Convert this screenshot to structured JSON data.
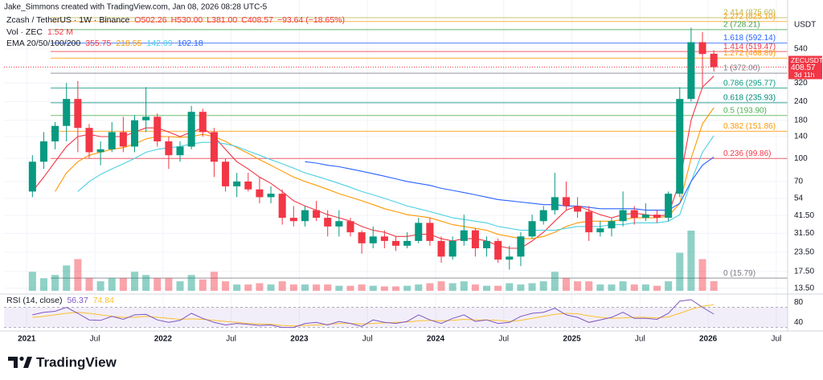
{
  "chart_data": {
    "type": "candlestick",
    "header": "Jake_Simmons created with TradingView.com, Jan 08, 2026 08:28 UTC-5",
    "legend": {
      "symbol": "Zcash / TetherUS · 1W · Binance",
      "quote": [
        "O502.26",
        "H530.00",
        "L381.00",
        "C408.57",
        "−93.64 (−18.65%)"
      ],
      "volume_label": "Vol · ZEC",
      "volume_value": "1.52 M",
      "ema_label": "EMA 20/50/100/200"
    },
    "axis_unit": "USDT",
    "ticker": "ZECUSDT",
    "countdown": "3d 11h",
    "brand": "TradingView",
    "up_color": "#089981",
    "down_color": "#f23645",
    "log_scale": true,
    "grid": true,
    "x": [
      "2021-01",
      "2021-02",
      "2021-03",
      "2021-04",
      "2021-05",
      "2021-06",
      "2021-07",
      "2021-08",
      "2021-09",
      "2021-10",
      "2021-11",
      "2021-12",
      "2022-01",
      "2022-02",
      "2022-03",
      "2022-04",
      "2022-05",
      "2022-06",
      "2022-07",
      "2022-08",
      "2022-09",
      "2022-10",
      "2022-11",
      "2022-12",
      "2023-01",
      "2023-02",
      "2023-03",
      "2023-04",
      "2023-05",
      "2023-06",
      "2023-07",
      "2023-08",
      "2023-09",
      "2023-10",
      "2023-11",
      "2023-12",
      "2024-01",
      "2024-02",
      "2024-03",
      "2024-04",
      "2024-05",
      "2024-06",
      "2024-07",
      "2024-08",
      "2024-09",
      "2024-10",
      "2024-11",
      "2024-12",
      "2025-01",
      "2025-02",
      "2025-03",
      "2025-04",
      "2025-05",
      "2025-06",
      "2025-07",
      "2025-08",
      "2025-09",
      "2025-10",
      "2025-11",
      "2025-12",
      "2026-01"
    ],
    "open": [
      60,
      95,
      130,
      165,
      250,
      160,
      110,
      115,
      150,
      120,
      180,
      190,
      130,
      105,
      120,
      205,
      150,
      95,
      65,
      70,
      62,
      55,
      58,
      40,
      38,
      45,
      40,
      35,
      38,
      32,
      27,
      30,
      28,
      26,
      28,
      37,
      28,
      22,
      28,
      33,
      25,
      28,
      21,
      22,
      30,
      38,
      45,
      55,
      48,
      44,
      32,
      34,
      38,
      45,
      40,
      42,
      40,
      58,
      250,
      600,
      502.26
    ],
    "high": [
      105,
      150,
      175,
      320,
      330,
      170,
      130,
      175,
      190,
      195,
      300,
      200,
      140,
      130,
      225,
      215,
      160,
      100,
      80,
      80,
      75,
      65,
      62,
      48,
      48,
      52,
      45,
      45,
      40,
      33,
      35,
      33,
      30,
      32,
      40,
      40,
      30,
      30,
      42,
      34,
      30,
      29,
      26,
      32,
      42,
      48,
      80,
      70,
      55,
      48,
      38,
      40,
      60,
      48,
      50,
      45,
      60,
      300,
      750,
      700,
      530
    ],
    "low": [
      55,
      85,
      115,
      130,
      110,
      100,
      90,
      110,
      110,
      110,
      150,
      120,
      85,
      95,
      115,
      140,
      75,
      60,
      55,
      60,
      50,
      50,
      36,
      35,
      35,
      38,
      30,
      30,
      30,
      23,
      25,
      25,
      24,
      25,
      27,
      26,
      20,
      21,
      26,
      22,
      22,
      20,
      18,
      19,
      29,
      36,
      42,
      45,
      40,
      28,
      30,
      30,
      35,
      36,
      38,
      37,
      38,
      55,
      240,
      300,
      381
    ],
    "close": [
      95,
      130,
      165,
      250,
      160,
      110,
      115,
      150,
      120,
      180,
      190,
      130,
      105,
      120,
      205,
      150,
      95,
      65,
      70,
      62,
      55,
      58,
      40,
      38,
      45,
      40,
      35,
      38,
      32,
      27,
      30,
      28,
      26,
      28,
      37,
      28,
      22,
      28,
      33,
      25,
      28,
      21,
      22,
      30,
      38,
      45,
      55,
      48,
      44,
      32,
      34,
      38,
      45,
      40,
      42,
      40,
      58,
      250,
      600,
      500,
      408.57
    ],
    "volume": [
      3,
      2,
      2.5,
      4,
      5,
      2,
      1.5,
      2,
      2,
      3,
      2.5,
      2,
      2,
      1.5,
      2.5,
      1.8,
      3,
      1.5,
      1,
      1,
      1.2,
      1,
      1.5,
      1,
      1,
      1,
      1,
      0.8,
      0.8,
      1,
      0.8,
      0.7,
      0.7,
      0.8,
      1,
      1.2,
      1.5,
      1.2,
      1.5,
      1,
      0.8,
      0.8,
      1.2,
      1,
      1.2,
      1.5,
      3,
      2,
      1.5,
      1.5,
      1,
      1,
      1.5,
      1,
      1,
      0.8,
      1.5,
      6,
      9.5,
      5,
      1.52
    ],
    "ema": [
      {
        "color": "#f23645",
        "values": [
          60,
          75,
          95,
          120,
          140,
          145,
          140,
          140,
          140,
          150,
          160,
          160,
          150,
          140,
          150,
          160,
          140,
          115,
          95,
          85,
          75,
          68,
          60,
          52,
          48,
          45,
          42,
          40,
          38,
          35,
          33,
          32,
          30,
          30,
          31,
          31,
          29,
          28,
          29,
          29,
          28,
          26,
          25,
          25,
          28,
          32,
          38,
          45,
          48,
          45,
          42,
          40,
          42,
          43,
          42,
          41,
          42,
          70,
          180,
          300,
          355.75
        ]
      },
      {
        "color": "#ff9800",
        "values": [
          null,
          null,
          60,
          80,
          95,
          105,
          110,
          115,
          118,
          125,
          135,
          140,
          140,
          138,
          140,
          145,
          140,
          130,
          118,
          108,
          98,
          90,
          82,
          75,
          70,
          66,
          62,
          58,
          55,
          52,
          49,
          46,
          44,
          42,
          41,
          40,
          38,
          36,
          35,
          34,
          33,
          31,
          30,
          29,
          29,
          30,
          32,
          35,
          37,
          38,
          38,
          38,
          39,
          40,
          40,
          40,
          41,
          50,
          100,
          170,
          218.55
        ]
      },
      {
        "color": "#4dd0e1",
        "values": [
          null,
          null,
          null,
          null,
          60,
          70,
          78,
          85,
          92,
          100,
          110,
          115,
          118,
          120,
          125,
          128,
          128,
          125,
          120,
          112,
          105,
          98,
          92,
          86,
          80,
          76,
          72,
          68,
          64,
          60,
          57,
          54,
          51,
          48,
          46,
          44,
          42,
          40,
          39,
          38,
          37,
          35,
          34,
          33,
          33,
          33,
          33,
          34,
          35,
          35,
          35,
          36,
          36,
          37,
          37,
          37,
          38,
          42,
          70,
          110,
          142.09
        ]
      },
      {
        "color": "#2962ff",
        "values": [
          null,
          null,
          null,
          null,
          null,
          null,
          null,
          null,
          null,
          null,
          null,
          null,
          null,
          null,
          null,
          null,
          null,
          null,
          null,
          null,
          null,
          null,
          null,
          null,
          95,
          93,
          90,
          88,
          85,
          82,
          79,
          76,
          73,
          70,
          68,
          66,
          63,
          61,
          59,
          57,
          55,
          53,
          52,
          51,
          50,
          49,
          49,
          48,
          48,
          47,
          46,
          46,
          46,
          46,
          45,
          45,
          45,
          50,
          70,
          90,
          102.18
        ]
      }
    ],
    "xlim": [
      "2020-11",
      "2026-08"
    ],
    "xticks": [
      {
        "value": "2021-01",
        "label": "2021"
      },
      {
        "value": "2021-07",
        "label": "Jul"
      },
      {
        "value": "2022-01",
        "label": "2022"
      },
      {
        "value": "2022-07",
        "label": "Jul"
      },
      {
        "value": "2023-01",
        "label": "2023"
      },
      {
        "value": "2023-07",
        "label": "Jul"
      },
      {
        "value": "2024-01",
        "label": "2024"
      },
      {
        "value": "2024-07",
        "label": "Jul"
      },
      {
        "value": "2025-01",
        "label": "2025"
      },
      {
        "value": "2025-07",
        "label": "Jul"
      },
      {
        "value": "2026-01",
        "label": "2026"
      },
      {
        "value": "2026-07",
        "label": "Jul"
      }
    ],
    "ylim": [
      12.5,
      955
    ],
    "yticks": [
      540,
      320,
      240,
      180,
      140,
      100,
      70,
      54,
      {
        "value": 41.5,
        "label": "41.50"
      },
      {
        "value": 31.5,
        "label": "31.50"
      },
      {
        "value": 23.5,
        "label": "23.50"
      },
      {
        "value": 17.5,
        "label": "17.50"
      },
      {
        "value": 13.5,
        "label": "13.50"
      }
    ],
    "fib_levels": [
      {
        "value": 875.6,
        "label": "2.414 (875.60)",
        "color": "#b9b64a"
      },
      {
        "value": 825.1,
        "label": "2.272 (825.10)",
        "color": "#f7a21b"
      },
      {
        "value": 728.21,
        "label": "2 (728.21)",
        "color": "#43a047"
      },
      {
        "value": 592.14,
        "label": "1.618 (592.14)",
        "color": "#2962ff"
      },
      {
        "value": 519.47,
        "label": "1.414 (519.47)",
        "color": "#f23645"
      },
      {
        "value": 468.89,
        "label": "1.272 (468.89)",
        "color": "#ff9800"
      },
      {
        "value": 372.0,
        "label": "1 (372.00)",
        "color": "#787b86"
      },
      {
        "value": 295.77,
        "label": "0.786 (295.77)",
        "color": "#089981"
      },
      {
        "value": 235.93,
        "label": "0.618 (235.93)",
        "color": "#00897b"
      },
      {
        "value": 193.9,
        "label": "0.5 (193.90)",
        "color": "#4caf50"
      },
      {
        "value": 151.86,
        "label": "0.382 (151.86)",
        "color": "#ff9800"
      },
      {
        "value": 99.86,
        "label": "0.236 (99.86)",
        "color": "#f23645"
      },
      {
        "value": 15.79,
        "label": "0 (15.79)",
        "color": "#787b86"
      }
    ],
    "rsi": {
      "label": "RSI (14, close)",
      "color": "#7e57c2",
      "ma_color": "#fbc02d",
      "values": [
        55,
        60,
        62,
        70,
        58,
        45,
        44,
        52,
        46,
        55,
        56,
        45,
        40,
        44,
        58,
        48,
        40,
        35,
        38,
        36,
        34,
        35,
        30,
        30,
        38,
        40,
        35,
        42,
        38,
        32,
        45,
        40,
        38,
        42,
        55,
        45,
        38,
        48,
        55,
        42,
        45,
        38,
        40,
        52,
        58,
        60,
        68,
        55,
        50,
        40,
        45,
        50,
        60,
        48,
        48,
        46,
        58,
        82,
        85,
        70,
        56.37
      ],
      "ma_values": [
        50,
        52,
        55,
        58,
        60,
        58,
        55,
        52,
        50,
        50,
        52,
        50,
        48,
        46,
        47,
        46,
        44,
        42,
        40,
        38,
        37,
        36,
        34,
        33,
        34,
        35,
        36,
        38,
        38,
        37,
        38,
        39,
        40,
        41,
        43,
        44,
        43,
        44,
        46,
        45,
        45,
        44,
        42,
        44,
        48,
        52,
        56,
        58,
        57,
        53,
        50,
        48,
        49,
        50,
        50,
        49,
        51,
        58,
        66,
        72,
        74.84
      ],
      "ylim": [
        23,
        93
      ],
      "yticks": [
        80,
        40
      ],
      "band": [
        30,
        70
      ]
    }
  }
}
